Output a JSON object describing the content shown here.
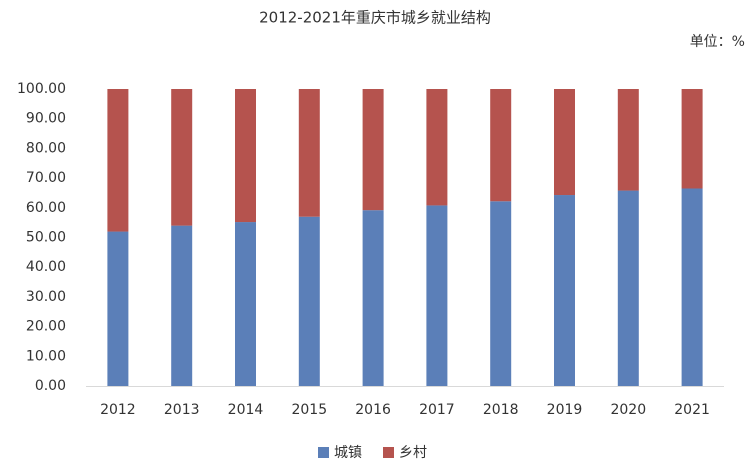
{
  "chart_data": {
    "type": "stacked_bar",
    "title": "2012-2021年重庆市城乡就业结构",
    "unit_label": "单位：%",
    "categories": [
      "2012",
      "2013",
      "2014",
      "2015",
      "2016",
      "2017",
      "2018",
      "2019",
      "2020",
      "2021"
    ],
    "series": [
      {
        "name": "城镇",
        "color": "#5b7fb8",
        "values": [
          52.0,
          54.0,
          55.2,
          57.0,
          59.2,
          60.8,
          62.2,
          64.3,
          65.8,
          66.5
        ]
      },
      {
        "name": "乡村",
        "color": "#b5534e",
        "values": [
          48.0,
          46.0,
          44.8,
          43.0,
          40.8,
          39.2,
          37.8,
          35.7,
          34.2,
          33.5
        ]
      }
    ],
    "ylim": [
      0,
      100
    ],
    "yticks": [
      {
        "value": 0,
        "label": "0.00"
      },
      {
        "value": 10,
        "label": "10.00"
      },
      {
        "value": 20,
        "label": "20.00"
      },
      {
        "value": 30,
        "label": "30.00"
      },
      {
        "value": 40,
        "label": "40.00"
      },
      {
        "value": 50,
        "label": "50.00"
      },
      {
        "value": 60,
        "label": "60.00"
      },
      {
        "value": 70,
        "label": "70.00"
      },
      {
        "value": 80,
        "label": "80.00"
      },
      {
        "value": 90,
        "label": "90.00"
      },
      {
        "value": 100,
        "label": "100.00"
      }
    ],
    "grid": false
  }
}
